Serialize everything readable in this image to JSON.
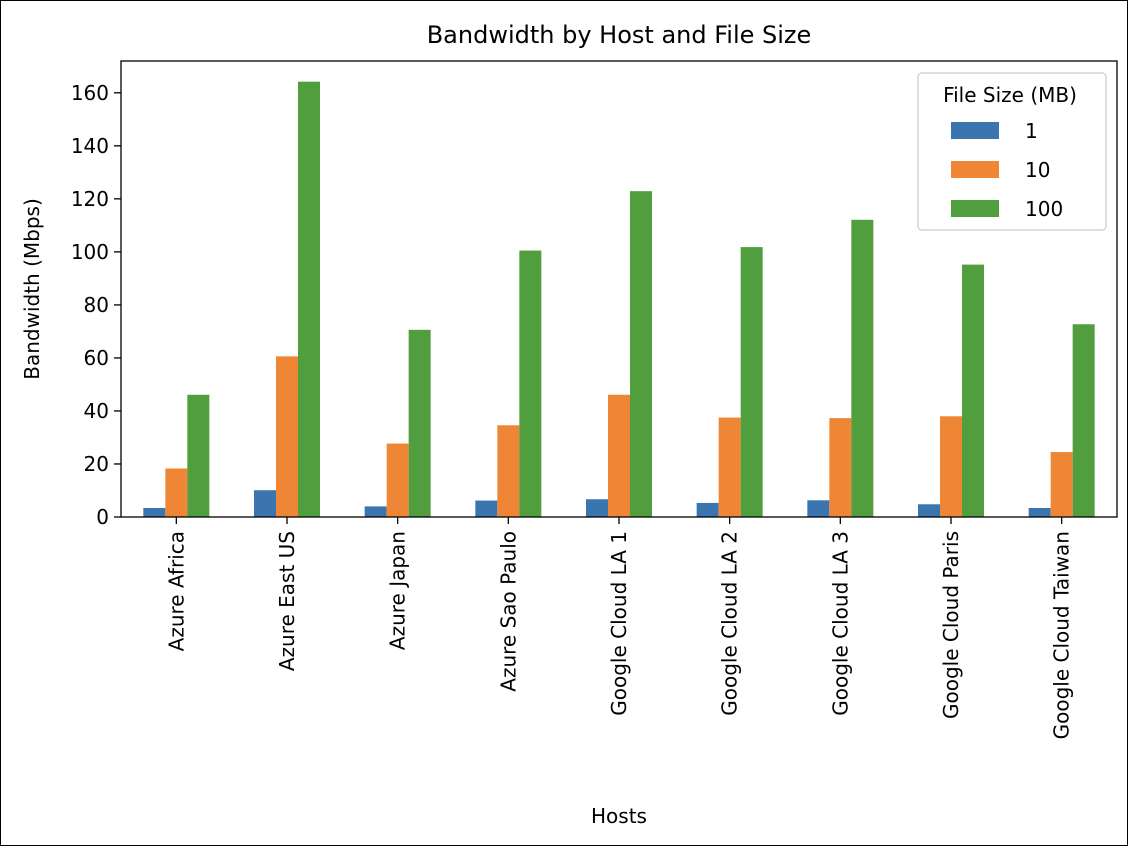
{
  "chart_data": {
    "type": "bar",
    "title": "Bandwidth by Host and File Size",
    "xlabel": "Hosts",
    "ylabel": "Bandwidth (Mbps)",
    "ylim": [
      0,
      172
    ],
    "yticks": [
      0,
      20,
      40,
      60,
      80,
      100,
      120,
      140,
      160
    ],
    "grid": false,
    "legend": {
      "title": "File Size (MB)",
      "placement": "top-right"
    },
    "categories": [
      "Azure Africa",
      "Azure East US",
      "Azure Japan",
      "Azure Sao Paulo",
      "Google Cloud LA 1",
      "Google Cloud LA 2",
      "Google Cloud LA 3",
      "Google Cloud Paris",
      "Google Cloud Taiwan"
    ],
    "series": [
      {
        "name": "1",
        "color": "#3a75af",
        "values": [
          3.4,
          10.1,
          4.0,
          6.2,
          6.7,
          5.3,
          6.3,
          4.8,
          3.4
        ]
      },
      {
        "name": "10",
        "color": "#ef8636",
        "values": [
          18.3,
          60.6,
          27.7,
          34.6,
          46.1,
          37.5,
          37.3,
          38.0,
          24.5
        ]
      },
      {
        "name": "100",
        "color": "#519e3e",
        "values": [
          46.1,
          164.2,
          70.6,
          100.5,
          122.9,
          101.8,
          112.1,
          95.2,
          72.7
        ]
      }
    ]
  }
}
